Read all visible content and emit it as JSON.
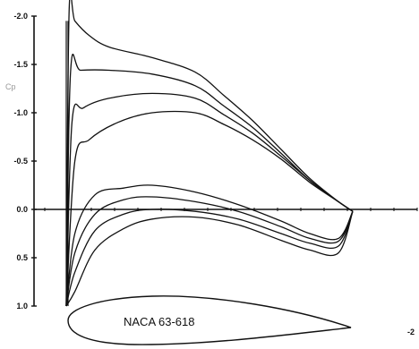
{
  "chart_data": {
    "type": "line",
    "title": "",
    "xlabel": "",
    "ylabel": "Cp",
    "x_axis_end_label": "-2",
    "airfoil_label": "NACA 63-618",
    "y_inverted": true,
    "ylim": [
      -2.0,
      1.0
    ],
    "xlim": [
      0,
      1
    ],
    "grid": false,
    "legend": "none",
    "y_ticks": [
      "-2.0",
      "-1.5",
      "-1.0",
      "-0.5",
      "0.0",
      "0.5",
      "1.0"
    ],
    "y_tick_values": [
      -2.0,
      -1.5,
      -1.0,
      -0.5,
      0.0,
      0.5,
      1.0
    ],
    "upper_surface_curves": [
      {
        "x": [
          0.0,
          0.01,
          0.03,
          0.08,
          0.15,
          0.3,
          0.45,
          0.55,
          0.65,
          0.75,
          0.85,
          0.95,
          1.0
        ],
        "y": [
          1.0,
          -2.05,
          -1.95,
          -1.8,
          -1.68,
          -1.57,
          -1.42,
          -1.18,
          -0.92,
          -0.62,
          -0.32,
          -0.08,
          0.02
        ]
      },
      {
        "x": [
          0.0,
          0.015,
          0.05,
          0.15,
          0.3,
          0.45,
          0.55,
          0.65,
          0.75,
          0.85,
          0.95,
          1.0
        ],
        "y": [
          1.0,
          -1.42,
          -1.44,
          -1.44,
          -1.4,
          -1.28,
          -1.07,
          -0.85,
          -0.58,
          -0.3,
          -0.08,
          0.02
        ]
      },
      {
        "x": [
          0.0,
          0.02,
          0.06,
          0.15,
          0.3,
          0.45,
          0.55,
          0.65,
          0.75,
          0.85,
          0.95,
          1.0
        ],
        "y": [
          1.0,
          -0.9,
          -1.05,
          -1.15,
          -1.2,
          -1.15,
          -0.98,
          -0.79,
          -0.55,
          -0.3,
          -0.08,
          0.02
        ]
      },
      {
        "x": [
          0.0,
          0.03,
          0.08,
          0.18,
          0.3,
          0.45,
          0.55,
          0.65,
          0.75,
          0.85,
          0.95,
          1.0
        ],
        "y": [
          1.0,
          -0.5,
          -0.72,
          -0.9,
          -1.0,
          -1.0,
          -0.88,
          -0.72,
          -0.52,
          -0.28,
          -0.08,
          0.02
        ]
      }
    ],
    "lower_surface_curves": [
      {
        "x": [
          0.0,
          0.03,
          0.1,
          0.2,
          0.3,
          0.45,
          0.6,
          0.75,
          0.85,
          0.95,
          1.0
        ],
        "y": [
          1.0,
          0.25,
          -0.15,
          -0.22,
          -0.25,
          -0.18,
          -0.05,
          0.12,
          0.25,
          0.3,
          0.02
        ]
      },
      {
        "x": [
          0.0,
          0.03,
          0.1,
          0.2,
          0.3,
          0.45,
          0.6,
          0.75,
          0.85,
          0.95,
          1.0
        ],
        "y": [
          1.0,
          0.45,
          0.05,
          -0.1,
          -0.13,
          -0.08,
          0.02,
          0.18,
          0.3,
          0.33,
          0.02
        ]
      },
      {
        "x": [
          0.0,
          0.03,
          0.1,
          0.2,
          0.3,
          0.45,
          0.6,
          0.75,
          0.85,
          0.95,
          1.0
        ],
        "y": [
          1.0,
          0.65,
          0.22,
          0.05,
          0.0,
          0.02,
          0.1,
          0.25,
          0.35,
          0.38,
          0.02
        ]
      },
      {
        "x": [
          0.0,
          0.03,
          0.1,
          0.2,
          0.3,
          0.45,
          0.6,
          0.75,
          0.85,
          0.95,
          1.0
        ],
        "y": [
          1.0,
          0.85,
          0.42,
          0.2,
          0.1,
          0.08,
          0.16,
          0.32,
          0.42,
          0.45,
          0.02
        ]
      }
    ]
  }
}
